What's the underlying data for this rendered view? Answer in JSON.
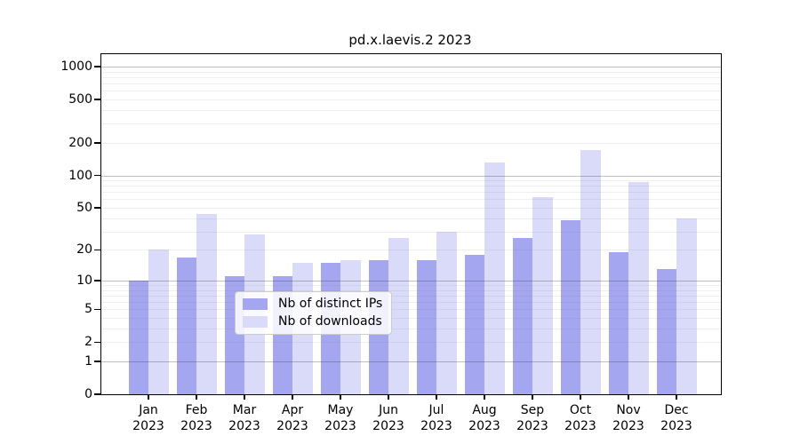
{
  "title": "pd.x.laevis.2 2023",
  "legend": {
    "ip_label": "Nb of distinct IPs",
    "dl_label": "Nb of downloads"
  },
  "colors": {
    "ip_bar": "#a5a6f0",
    "dl_bar": "#dadbf8",
    "grid_major": "#bdbdbd",
    "grid_minor": "#e9e9e9",
    "axis": "#000000"
  },
  "chart_data": {
    "type": "bar",
    "title": "pd.x.laevis.2 2023",
    "scale": "log1p",
    "grid": true,
    "legend_position": "lower center",
    "categories": [
      "Jan",
      "Feb",
      "Mar",
      "Apr",
      "May",
      "Jun",
      "Jul",
      "Aug",
      "Sep",
      "Oct",
      "Nov",
      "Dec"
    ],
    "year": "2023",
    "series": [
      {
        "name": "Nb of distinct IPs",
        "values": [
          10,
          17,
          11,
          11,
          15,
          16,
          16,
          18,
          26,
          38,
          19,
          13
        ]
      },
      {
        "name": "Nb of downloads",
        "values": [
          20,
          44,
          28,
          15,
          16,
          26,
          30,
          132,
          63,
          170,
          87,
          40
        ]
      }
    ],
    "yticks": [
      0,
      1,
      2,
      5,
      10,
      20,
      50,
      100,
      200,
      500,
      1000
    ],
    "ylim": [
      0,
      1300
    ],
    "xlabel": "",
    "ylabel": ""
  }
}
